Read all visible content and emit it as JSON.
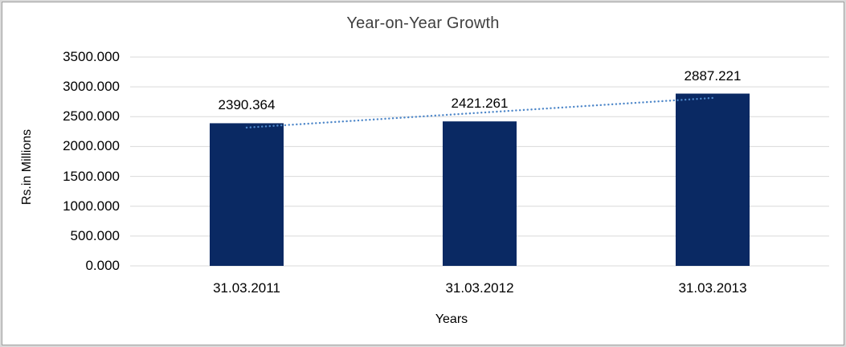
{
  "chart_data": {
    "type": "bar",
    "title": "Year-on-Year Growth",
    "xlabel": "Years",
    "ylabel": "Rs.in Millions",
    "categories": [
      "31.03.2011",
      "31.03.2012",
      "31.03.2013"
    ],
    "values": [
      2390.364,
      2421.261,
      2887.221
    ],
    "data_labels": [
      "2390.364",
      "2421.261",
      "2887.221"
    ],
    "yticks": [
      0,
      500,
      1000,
      1500,
      2000,
      2500,
      3000,
      3500
    ],
    "ytick_decimals": 3,
    "ylim": [
      0,
      3500
    ],
    "grid": true,
    "legend": false,
    "colors": {
      "bar": "#0a2963",
      "trendline": "#4e87c9",
      "gridline": "#d9d9d9",
      "title_text": "#404040",
      "axis_text": "#000000",
      "frame_outer": "#d9d9d9",
      "frame_inner": "#9e9e9e"
    },
    "trendline": {
      "type": "linear",
      "style": "dotted",
      "color": "#4e87c9",
      "endpoint_values": [
        2317.8,
        2814.7
      ]
    }
  }
}
